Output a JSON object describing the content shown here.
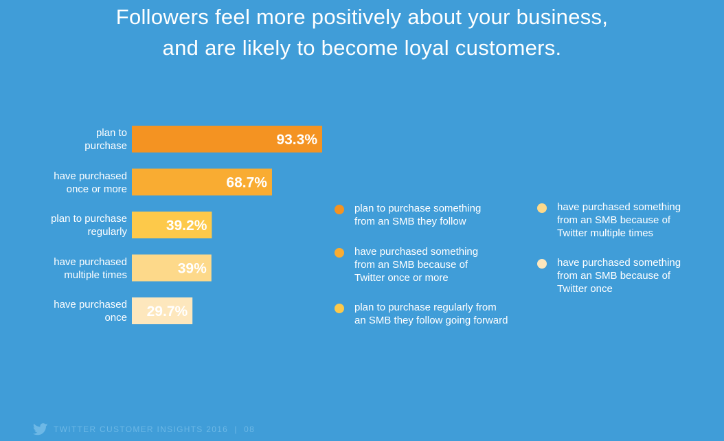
{
  "title": {
    "line1": "Followers feel more positively about your business,",
    "line2": "and are likely to become loyal customers."
  },
  "chart_data": {
    "type": "bar",
    "orientation": "horizontal",
    "categories": [
      [
        "plan to",
        "purchase"
      ],
      [
        "have purchased",
        "once or more"
      ],
      [
        "plan to purchase",
        "regularly"
      ],
      [
        "have purchased",
        "multiple times"
      ],
      [
        "have purchased",
        "once"
      ]
    ],
    "values": [
      93.3,
      68.7,
      39.2,
      39,
      29.7
    ],
    "value_labels": [
      "93.3%",
      "68.7%",
      "39.2%",
      "39%",
      "29.7%"
    ],
    "colors": [
      "#f49322",
      "#f9ac32",
      "#fdc94a",
      "#fdd98a",
      "#fde7bd"
    ],
    "xlim": [
      0,
      100
    ],
    "grid": false,
    "legend_position": "right",
    "legend": [
      {
        "label": [
          "plan to purchase something",
          "from an SMB they follow"
        ],
        "color": "#f49322"
      },
      {
        "label": [
          "have purchased something",
          "from an SMB because of",
          "Twitter once or more"
        ],
        "color": "#f9ac32"
      },
      {
        "label": [
          "plan to purchase regularly from",
          "an SMB they follow going forward"
        ],
        "color": "#fdc94a"
      },
      {
        "label": [
          "have purchased something",
          "from an SMB because of",
          "Twitter multiple times"
        ],
        "color": "#fdd98a"
      },
      {
        "label": [
          "have purchased something",
          "from an SMB because of",
          "Twitter once"
        ],
        "color": "#fde7bd"
      }
    ]
  },
  "footer": {
    "text": "TWITTER CUSTOMER INSIGHTS 2016  |  08",
    "icon": "twitter-bird-icon"
  }
}
